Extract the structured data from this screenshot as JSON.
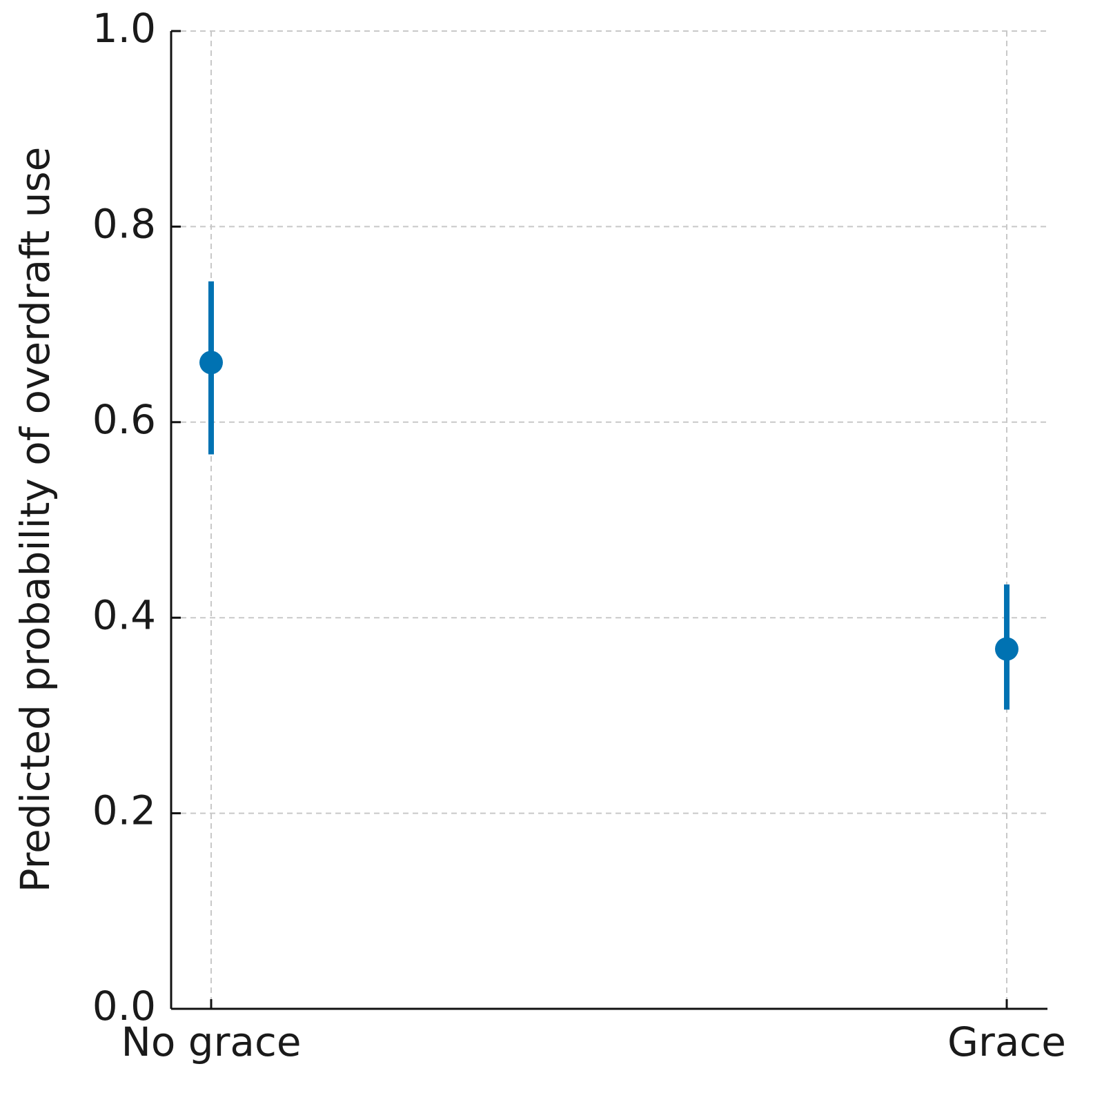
{
  "chart_data": {
    "type": "pointrange",
    "y_label": "Predicted probability of overdraft use",
    "categories": [
      "No grace",
      "Grace"
    ],
    "values": [
      0.661,
      0.368
    ],
    "ci_low": [
      0.567,
      0.306
    ],
    "ci_high": [
      0.744,
      0.434
    ],
    "color": "#0072b2",
    "ylim": [
      0,
      1
    ],
    "yticks": [
      {
        "value": 0,
        "label": "0.0"
      },
      {
        "value": 0.2,
        "label": "0.2"
      },
      {
        "value": 0.4,
        "label": "0.4"
      },
      {
        "value": 0.6,
        "label": "0.6"
      },
      {
        "value": 0.8,
        "label": "0.8"
      },
      {
        "value": 1,
        "label": "1.0"
      }
    ],
    "grid": true
  }
}
